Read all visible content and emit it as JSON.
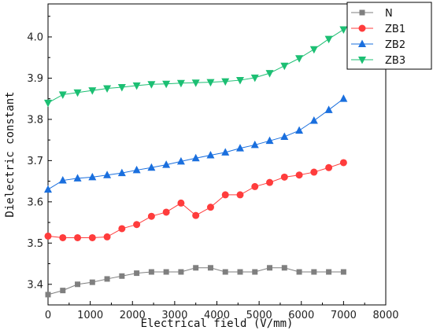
{
  "chart_data": {
    "type": "line",
    "xlabel": "Electrical field (V/mm)",
    "ylabel": "Dielectric constant",
    "xlim": [
      0,
      8000
    ],
    "ylim": [
      3.35,
      4.08
    ],
    "x_ticks": [
      0,
      1000,
      2000,
      3000,
      4000,
      5000,
      6000,
      7000,
      8000
    ],
    "y_ticks": [
      3.4,
      3.5,
      3.6,
      3.7,
      3.8,
      3.9,
      4.0
    ],
    "x_tick_labels": [
      "0",
      "1000",
      "2000",
      "3000",
      "4000",
      "5000",
      "6000",
      "7000",
      "8000"
    ],
    "y_tick_labels": [
      "3.4",
      "3.5",
      "3.6",
      "3.7",
      "3.8",
      "3.9",
      "4.0"
    ],
    "grid": false,
    "legend_position": "top-right",
    "x": [
      0,
      350,
      700,
      1050,
      1400,
      1750,
      2100,
      2450,
      2800,
      3150,
      3500,
      3850,
      4200,
      4550,
      4900,
      5250,
      5600,
      5950,
      6300,
      6650,
      7000
    ],
    "series": [
      {
        "name": "N",
        "marker": "square",
        "color": "#7f7f7f",
        "values": [
          3.375,
          3.385,
          3.4,
          3.405,
          3.413,
          3.42,
          3.427,
          3.43,
          3.43,
          3.43,
          3.44,
          3.44,
          3.43,
          3.43,
          3.43,
          3.44,
          3.44,
          3.43,
          3.43,
          3.43,
          3.43
        ]
      },
      {
        "name": "ZB1",
        "marker": "circle",
        "color": "#ff3c3c",
        "values": [
          3.517,
          3.513,
          3.513,
          3.513,
          3.515,
          3.535,
          3.545,
          3.565,
          3.575,
          3.597,
          3.567,
          3.587,
          3.617,
          3.617,
          3.637,
          3.647,
          3.66,
          3.665,
          3.672,
          3.683,
          3.695
        ]
      },
      {
        "name": "ZB2",
        "marker": "triangle-up",
        "color": "#1a6fde",
        "values": [
          3.63,
          3.652,
          3.657,
          3.66,
          3.665,
          3.67,
          3.677,
          3.683,
          3.69,
          3.698,
          3.706,
          3.713,
          3.72,
          3.73,
          3.738,
          3.748,
          3.758,
          3.773,
          3.797,
          3.823,
          3.85
        ]
      },
      {
        "name": "ZB3",
        "marker": "triangle-down",
        "color": "#1cbf73",
        "values": [
          3.84,
          3.86,
          3.865,
          3.87,
          3.875,
          3.878,
          3.882,
          3.885,
          3.886,
          3.888,
          3.889,
          3.89,
          3.892,
          3.895,
          3.901,
          3.912,
          3.93,
          3.948,
          3.97,
          3.995,
          4.018
        ]
      }
    ]
  }
}
